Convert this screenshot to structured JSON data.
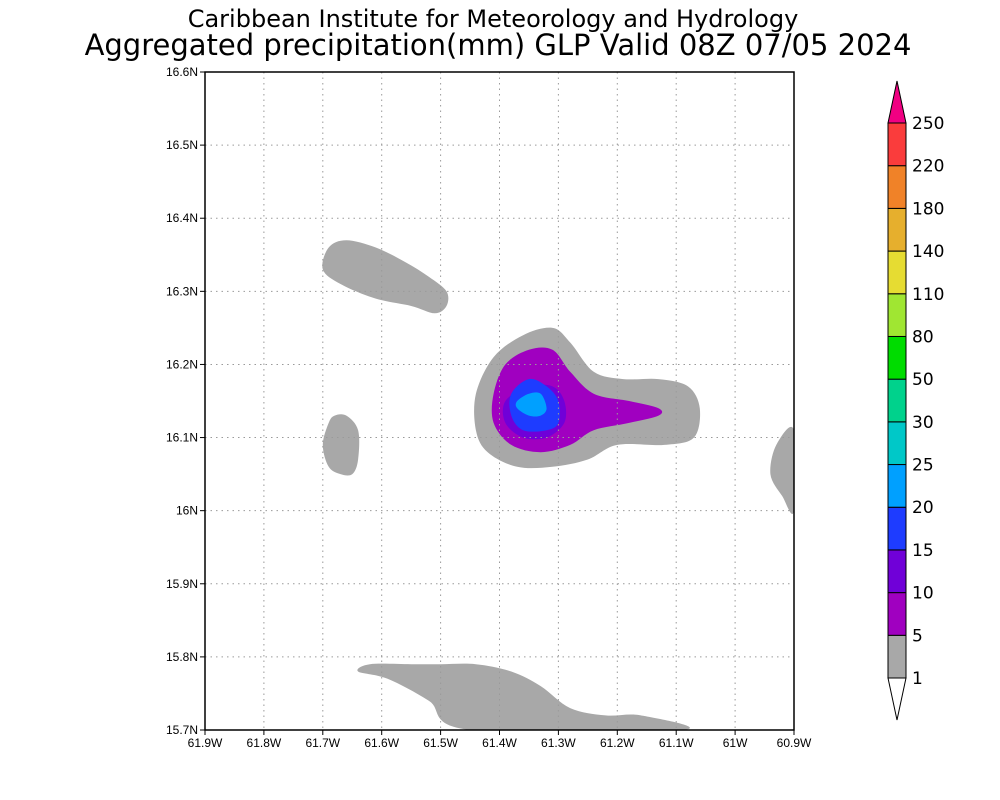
{
  "header": {
    "title_line1": "Caribbean Institute for Meteorology and Hydrology",
    "title_line2": "Aggregated precipitation(mm) GLP Valid 08Z 07/05 2024"
  },
  "map": {
    "lon_range": [
      -61.9,
      -60.9
    ],
    "lat_range": [
      15.7,
      16.6
    ],
    "grid": true,
    "x_ticks": [
      {
        "value": -61.9,
        "label": "61.9W"
      },
      {
        "value": -61.8,
        "label": "61.8W"
      },
      {
        "value": -61.7,
        "label": "61.7W"
      },
      {
        "value": -61.6,
        "label": "61.6W"
      },
      {
        "value": -61.5,
        "label": "61.5W"
      },
      {
        "value": -61.4,
        "label": "61.4W"
      },
      {
        "value": -61.3,
        "label": "61.3W"
      },
      {
        "value": -61.2,
        "label": "61.2W"
      },
      {
        "value": -61.1,
        "label": "61.1W"
      },
      {
        "value": -61.0,
        "label": "61W"
      },
      {
        "value": -60.9,
        "label": "60.9W"
      }
    ],
    "y_ticks": [
      {
        "value": 15.7,
        "label": "15.7N"
      },
      {
        "value": 15.8,
        "label": "15.8N"
      },
      {
        "value": 15.9,
        "label": "15.9N"
      },
      {
        "value": 16.0,
        "label": "16N"
      },
      {
        "value": 16.1,
        "label": "16.1N"
      },
      {
        "value": 16.2,
        "label": "16.2N"
      },
      {
        "value": 16.3,
        "label": "16.3N"
      },
      {
        "value": 16.4,
        "label": "16.4N"
      },
      {
        "value": 16.5,
        "label": "16.5N"
      },
      {
        "value": 16.6,
        "label": "16.6N"
      }
    ],
    "regions": [
      {
        "name": "blob-northwest",
        "level": "1-5",
        "color": "#a8a8a8",
        "pts": [
          [
            -61.69,
            16.36
          ],
          [
            -61.66,
            16.37
          ],
          [
            -61.61,
            16.36
          ],
          [
            -61.56,
            16.34
          ],
          [
            -61.52,
            16.32
          ],
          [
            -61.49,
            16.3
          ],
          [
            -61.49,
            16.28
          ],
          [
            -61.51,
            16.27
          ],
          [
            -61.55,
            16.28
          ],
          [
            -61.61,
            16.29
          ],
          [
            -61.67,
            16.31
          ],
          [
            -61.7,
            16.33
          ]
        ]
      },
      {
        "name": "blob-west",
        "level": "1-5",
        "color": "#a8a8a8",
        "pts": [
          [
            -61.68,
            16.13
          ],
          [
            -61.66,
            16.13
          ],
          [
            -61.64,
            16.11
          ],
          [
            -61.64,
            16.07
          ],
          [
            -61.65,
            16.05
          ],
          [
            -61.67,
            16.05
          ],
          [
            -61.69,
            16.06
          ],
          [
            -61.7,
            16.09
          ],
          [
            -61.69,
            16.12
          ]
        ]
      },
      {
        "name": "blob-east-edge",
        "level": "1-5",
        "color": "#a8a8a8",
        "pts": [
          [
            -60.9,
            16.11
          ],
          [
            -60.93,
            16.09
          ],
          [
            -60.94,
            16.05
          ],
          [
            -60.92,
            16.02
          ],
          [
            -60.9,
            16.0
          ]
        ]
      },
      {
        "name": "blob-south",
        "level": "1-5",
        "color": "#a8a8a8",
        "pts": [
          [
            -61.62,
            15.79
          ],
          [
            -61.55,
            15.79
          ],
          [
            -61.5,
            15.79
          ],
          [
            -61.44,
            15.79
          ],
          [
            -61.38,
            15.78
          ],
          [
            -61.33,
            15.76
          ],
          [
            -61.28,
            15.73
          ],
          [
            -61.22,
            15.72
          ],
          [
            -61.16,
            15.72
          ],
          [
            -61.09,
            15.7
          ],
          [
            -61.45,
            15.7
          ],
          [
            -61.52,
            15.74
          ],
          [
            -61.59,
            15.77
          ],
          [
            -61.64,
            15.78
          ]
        ]
      },
      {
        "name": "core-1-5mm",
        "level": "1-5",
        "color": "#a8a8a8",
        "pts": [
          [
            -61.36,
            16.24
          ],
          [
            -61.31,
            16.25
          ],
          [
            -61.28,
            16.23
          ],
          [
            -61.24,
            16.19
          ],
          [
            -61.19,
            16.18
          ],
          [
            -61.13,
            16.18
          ],
          [
            -61.08,
            16.17
          ],
          [
            -61.06,
            16.14
          ],
          [
            -61.07,
            16.1
          ],
          [
            -61.12,
            16.09
          ],
          [
            -61.2,
            16.09
          ],
          [
            -61.25,
            16.07
          ],
          [
            -61.31,
            16.06
          ],
          [
            -61.37,
            16.06
          ],
          [
            -61.42,
            16.08
          ],
          [
            -61.44,
            16.11
          ],
          [
            -61.44,
            16.16
          ],
          [
            -61.41,
            16.21
          ]
        ]
      },
      {
        "name": "core-5-10mm",
        "level": "5-10",
        "color": "#a000c0",
        "pts": [
          [
            -61.35,
            16.22
          ],
          [
            -61.31,
            16.22
          ],
          [
            -61.28,
            16.19
          ],
          [
            -61.24,
            16.16
          ],
          [
            -61.18,
            16.15
          ],
          [
            -61.13,
            16.14
          ],
          [
            -61.13,
            16.13
          ],
          [
            -61.18,
            16.12
          ],
          [
            -61.24,
            16.11
          ],
          [
            -61.28,
            16.09
          ],
          [
            -61.33,
            16.08
          ],
          [
            -61.38,
            16.09
          ],
          [
            -61.41,
            16.12
          ],
          [
            -61.41,
            16.16
          ],
          [
            -61.39,
            16.2
          ]
        ]
      },
      {
        "name": "core-10-15mm",
        "level": "10-15",
        "color": "#7000d8",
        "pts": [
          [
            -61.35,
            16.17
          ],
          [
            -61.31,
            16.17
          ],
          [
            -61.29,
            16.15
          ],
          [
            -61.29,
            16.12
          ],
          [
            -61.32,
            16.1
          ],
          [
            -61.36,
            16.1
          ],
          [
            -61.39,
            16.12
          ],
          [
            -61.39,
            16.15
          ]
        ]
      },
      {
        "name": "core-15-20mm",
        "level": "15-20",
        "color": "#1e3cff",
        "pts": [
          [
            -61.35,
            16.18
          ],
          [
            -61.32,
            16.17
          ],
          [
            -61.3,
            16.15
          ],
          [
            -61.3,
            16.12
          ],
          [
            -61.32,
            16.11
          ],
          [
            -61.36,
            16.11
          ],
          [
            -61.38,
            16.13
          ],
          [
            -61.38,
            16.16
          ]
        ]
      },
      {
        "name": "core-20-25mm",
        "level": "20-25",
        "color": "#00a0ff",
        "pts": [
          [
            -61.35,
            16.16
          ],
          [
            -61.33,
            16.16
          ],
          [
            -61.32,
            16.14
          ],
          [
            -61.33,
            16.13
          ],
          [
            -61.35,
            16.13
          ],
          [
            -61.37,
            16.14
          ],
          [
            -61.37,
            16.15
          ]
        ]
      }
    ]
  },
  "colorbar": {
    "bands": [
      {
        "color": "#a8a8a8",
        "label": "1"
      },
      {
        "color": "#a000c0",
        "label": "5"
      },
      {
        "color": "#7000d8",
        "label": "10"
      },
      {
        "color": "#1e3cff",
        "label": "15"
      },
      {
        "color": "#00a0ff",
        "label": "20"
      },
      {
        "color": "#00c8c8",
        "label": "25"
      },
      {
        "color": "#00d28c",
        "label": "30"
      },
      {
        "color": "#00dc00",
        "label": "50"
      },
      {
        "color": "#a0e632",
        "label": "80"
      },
      {
        "color": "#e6dc32",
        "label": "110"
      },
      {
        "color": "#e6af2d",
        "label": "140"
      },
      {
        "color": "#f08228",
        "label": "180"
      },
      {
        "color": "#fa3c3c",
        "label": "220"
      }
    ],
    "top_label": "250",
    "top_arrow_color": "#f00082",
    "bottom_arrow_color": "#ffffff"
  }
}
